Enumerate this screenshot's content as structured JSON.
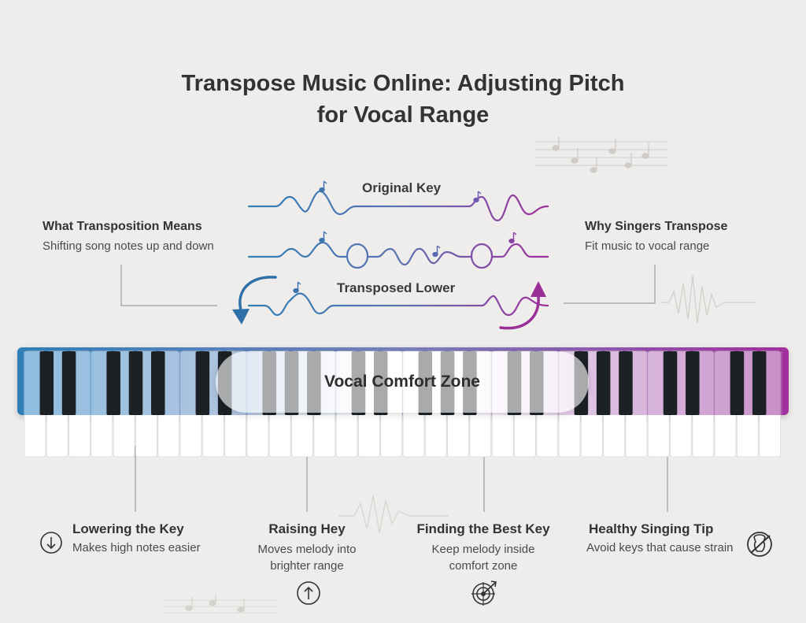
{
  "title": "Transpose Music Online: Adjusting Pitch\nfor Vocal Range",
  "waves": {
    "original_label": "Original Key",
    "transposed_label": "Transposed Lower"
  },
  "left_panel": {
    "title": "What Transposition Means",
    "description": "Shifting song notes up and down"
  },
  "right_panel": {
    "title": "Why Singers Transpose",
    "description": "Fit music to vocal range"
  },
  "keyboard": {
    "zone_label": "Vocal Comfort Zone",
    "gradient_colors": [
      "#2f7fb5",
      "#7a6fb8",
      "#a02f9c"
    ]
  },
  "bottom_items": [
    {
      "title": "Lowering the Key",
      "description": "Makes high notes easier",
      "icon": "arrow-down-circle-icon"
    },
    {
      "title": "Raising Hey",
      "description": "Moves melody into\nbrighter range",
      "icon": "arrow-up-circle-icon"
    },
    {
      "title": "Finding the Best Key",
      "description": "Keep melody inside\ncomfort zone",
      "icon": "target-icon"
    },
    {
      "title": "Healthy Singing Tip",
      "description": "Avoid keys that cause strain",
      "icon": "no-strain-icon"
    }
  ],
  "colors": {
    "blue": "#2f7fb5",
    "purple": "#a02f9c",
    "text": "#333333"
  }
}
